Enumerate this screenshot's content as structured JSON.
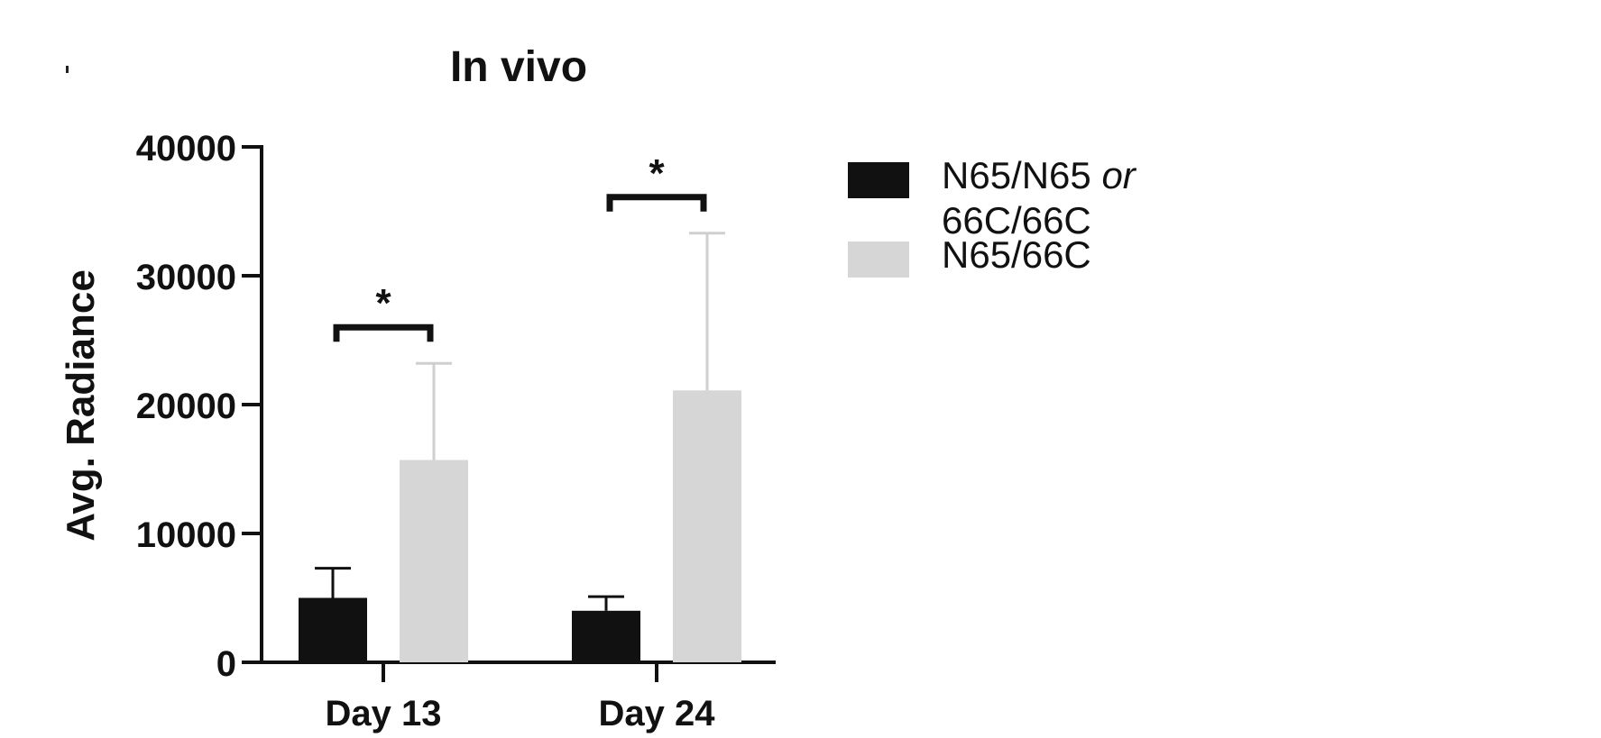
{
  "chart_data": {
    "type": "bar",
    "title": "In vivo",
    "ylabel": "Avg. Radiance",
    "xlabel": "",
    "ylim": [
      0,
      40000
    ],
    "yticks": [
      "0",
      "10000",
      "20000",
      "30000",
      "40000"
    ],
    "categories": [
      "Day 13",
      "Day 24"
    ],
    "series": [
      {
        "name": "N65/N65 or 66C/66C",
        "name_main": "N65/N65 ",
        "name_italic": "or",
        "name_line2": "66C/66C",
        "color": "#111111",
        "values": [
          5000,
          4000
        ],
        "errors": [
          2300,
          1100
        ]
      },
      {
        "name": "N65/66C",
        "color": "#d6d6d6",
        "values": [
          15700,
          21100
        ],
        "errors": [
          7500,
          12200
        ]
      }
    ],
    "significance": [
      {
        "category": "Day 13",
        "label": "*"
      },
      {
        "category": "Day 24",
        "label": "*"
      }
    ],
    "legend_position": "right"
  }
}
